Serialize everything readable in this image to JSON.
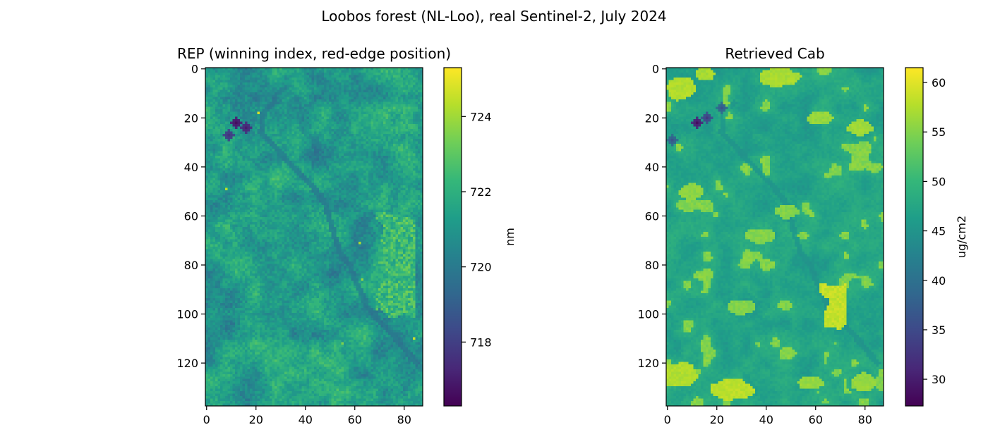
{
  "figure": {
    "suptitle": "Loobos forest (NL-Loo), real Sentinel-2, July 2024"
  },
  "colors": {
    "viridis": [
      "#440154",
      "#482878",
      "#3e4989",
      "#31688e",
      "#26828e",
      "#1f9e89",
      "#35b779",
      "#6ece58",
      "#b5de2b",
      "#fde725"
    ],
    "axis": "#000000",
    "background": "#ffffff"
  },
  "chart_data": [
    {
      "type": "heatmap",
      "title": "REP (winning index, red-edge position)",
      "colorbar_label": "nm",
      "colorbar_range": [
        716.3,
        725.3
      ],
      "colorbar_ticks": [
        718,
        720,
        722,
        724
      ],
      "x_range": [
        -0.5,
        87.5
      ],
      "y_range": [
        -0.5,
        137.5
      ],
      "x_ticks": [
        0,
        20,
        40,
        60,
        80
      ],
      "y_ticks": [
        0,
        20,
        40,
        60,
        80,
        100,
        120
      ],
      "grid_size": [
        88,
        138
      ],
      "typical_value": 721.2,
      "features": {
        "stream_path": [
          [
            27,
            14
          ],
          [
            23,
            18
          ],
          [
            22,
            26
          ],
          [
            28,
            32
          ],
          [
            33,
            38
          ],
          [
            38,
            43
          ],
          [
            43,
            48
          ],
          [
            48,
            55
          ],
          [
            50,
            62
          ],
          [
            52,
            69
          ],
          [
            54,
            75
          ],
          [
            58,
            80
          ],
          [
            60,
            86
          ],
          [
            63,
            92
          ],
          [
            65,
            97
          ],
          [
            70,
            103
          ],
          [
            75,
            108
          ],
          [
            80,
            114
          ],
          [
            85,
            120
          ]
        ],
        "stream_value": 719.6,
        "dark_spots": [
          [
            12,
            22,
            716.6
          ],
          [
            16,
            24,
            717.0
          ],
          [
            9,
            27,
            717.6
          ]
        ],
        "bright_spots": [
          [
            21,
            18,
            724.8
          ],
          [
            8,
            49,
            724.4
          ],
          [
            62,
            71,
            724.2
          ],
          [
            63,
            86,
            723.8
          ],
          [
            84,
            110,
            724.6
          ],
          [
            55,
            112,
            723.5
          ]
        ],
        "bright_region": [
          [
            70,
            85,
            60,
            100,
            722.4
          ]
        ]
      }
    },
    {
      "type": "heatmap",
      "title": "Retrieved Cab",
      "colorbar_label": "ug/cm2",
      "colorbar_range": [
        27.3,
        61.5
      ],
      "colorbar_ticks": [
        30,
        35,
        40,
        45,
        50,
        55,
        60
      ],
      "x_range": [
        -0.5,
        87.5
      ],
      "y_range": [
        -0.5,
        137.5
      ],
      "x_ticks": [
        0,
        20,
        40,
        60,
        80
      ],
      "y_ticks": [
        0,
        20,
        40,
        60,
        80,
        100,
        120
      ],
      "grid_size": [
        88,
        138
      ],
      "typical_value": 47.5,
      "features": {
        "stream_path": [
          [
            27,
            14
          ],
          [
            23,
            18
          ],
          [
            22,
            26
          ],
          [
            28,
            32
          ],
          [
            33,
            38
          ],
          [
            38,
            43
          ],
          [
            43,
            48
          ],
          [
            48,
            55
          ],
          [
            50,
            62
          ],
          [
            52,
            69
          ],
          [
            54,
            75
          ],
          [
            58,
            80
          ],
          [
            60,
            86
          ],
          [
            63,
            92
          ],
          [
            65,
            97
          ],
          [
            70,
            103
          ],
          [
            75,
            108
          ],
          [
            80,
            114
          ],
          [
            85,
            120
          ]
        ],
        "stream_value": 44.0,
        "dark_spots": [
          [
            12,
            22,
            28.5
          ],
          [
            16,
            20,
            33.0
          ],
          [
            22,
            16,
            36.0
          ],
          [
            2,
            29,
            36.0
          ]
        ],
        "bright_patches": [
          [
            5,
            8,
            6,
            5,
            57.5
          ],
          [
            15,
            2,
            4,
            3,
            57.0
          ],
          [
            45,
            3,
            8,
            4,
            57.0
          ],
          [
            62,
            20,
            5,
            3,
            56.0
          ],
          [
            78,
            24,
            5,
            3,
            56.5
          ],
          [
            10,
            50,
            5,
            3,
            55.5
          ],
          [
            38,
            68,
            6,
            3,
            55.0
          ],
          [
            48,
            58,
            5,
            3,
            55.0
          ],
          [
            30,
            97,
            6,
            3,
            55.0
          ],
          [
            5,
            125,
            7,
            5,
            57.5
          ],
          [
            26,
            131,
            9,
            4,
            58.0
          ],
          [
            58,
            128,
            5,
            3,
            56.0
          ],
          [
            80,
            128,
            5,
            4,
            56.0
          ]
        ],
        "bright_region": [
          [
            62,
            73,
            88,
            104,
            58.5
          ]
        ]
      }
    }
  ]
}
